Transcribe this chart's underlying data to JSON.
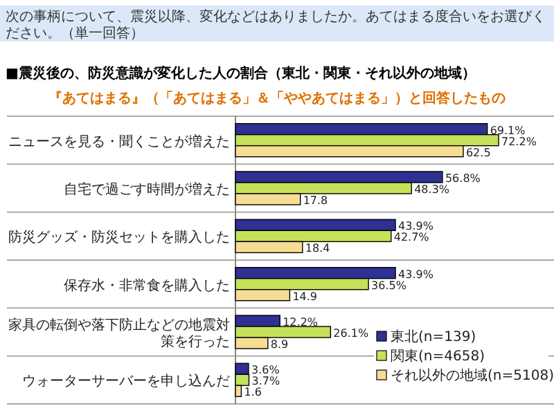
{
  "chart_data": {
    "type": "bar",
    "orientation": "horizontal",
    "annotations": [
      "次の事柄について、震災以降、変化などはありましたか。あてはまる度合いをお選びください。（単一回答）"
    ],
    "title": "■震災後の、防災意識が変化した人の割合（東北・関東・それ以外の地域）",
    "subtitle": "『あてはまる』（「あてはまる」＆「ややあてはまる」）と回答したもの",
    "categories": [
      "ニュースを見る・聞くことが増えた",
      "自宅で過ごす時間が増えた",
      "防災グッズ・防災セットを購入した",
      "保存水・非常食を購入した",
      "家具の転倒や落下防止などの地震対策を行った",
      "ウォーターサーバーを申し込んだ"
    ],
    "series": [
      {
        "name": "東北(n=139)",
        "color": "#2e3192",
        "values": [
          69.1,
          56.8,
          43.9,
          43.9,
          12.2,
          3.6
        ],
        "value_labels": [
          "69.1%",
          "56.8%",
          "43.9%",
          "43.9%",
          "12.2%",
          "3.6%"
        ]
      },
      {
        "name": "関東(n=4658)",
        "color": "#c5e25a",
        "values": [
          72.2,
          48.3,
          42.7,
          36.5,
          26.1,
          3.7
        ],
        "value_labels": [
          "72.2%",
          "48.3%",
          "42.7%",
          "36.5%",
          "26.1%",
          "3.7%"
        ]
      },
      {
        "name": "それ以外の地域(n=5108)",
        "color": "#f7dc94",
        "values": [
          62.5,
          17.8,
          18.4,
          14.9,
          8.9,
          1.6
        ],
        "value_labels": [
          "62.5",
          "17.8",
          "18.4",
          "14.9",
          "8.9",
          "1.6"
        ]
      }
    ],
    "legend": "bottom right"
  }
}
